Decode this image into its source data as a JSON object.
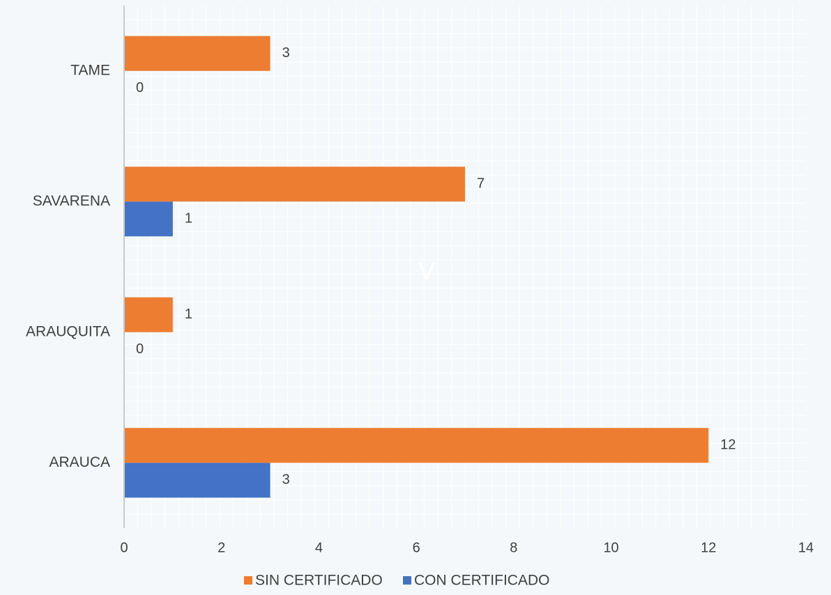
{
  "chart_data": {
    "type": "bar",
    "orientation": "horizontal",
    "categories": [
      "ARAUCA",
      "ARAUQUITA",
      "SAVARENA",
      "TAME"
    ],
    "series": [
      {
        "name": "CON CERTIFICADO",
        "values": [
          3,
          0,
          1,
          0
        ],
        "color": "#4472c4"
      },
      {
        "name": "SIN CERTIFICADO",
        "values": [
          12,
          1,
          7,
          3
        ],
        "color": "#ed7d31"
      }
    ],
    "xlim": [
      0,
      14
    ],
    "xticks": [
      "0",
      "2",
      "4",
      "6",
      "8",
      "10",
      "12",
      "14"
    ],
    "title": "",
    "xlabel": "",
    "ylabel": "",
    "legend_position": "bottom",
    "grid": true,
    "annotation": "V"
  }
}
